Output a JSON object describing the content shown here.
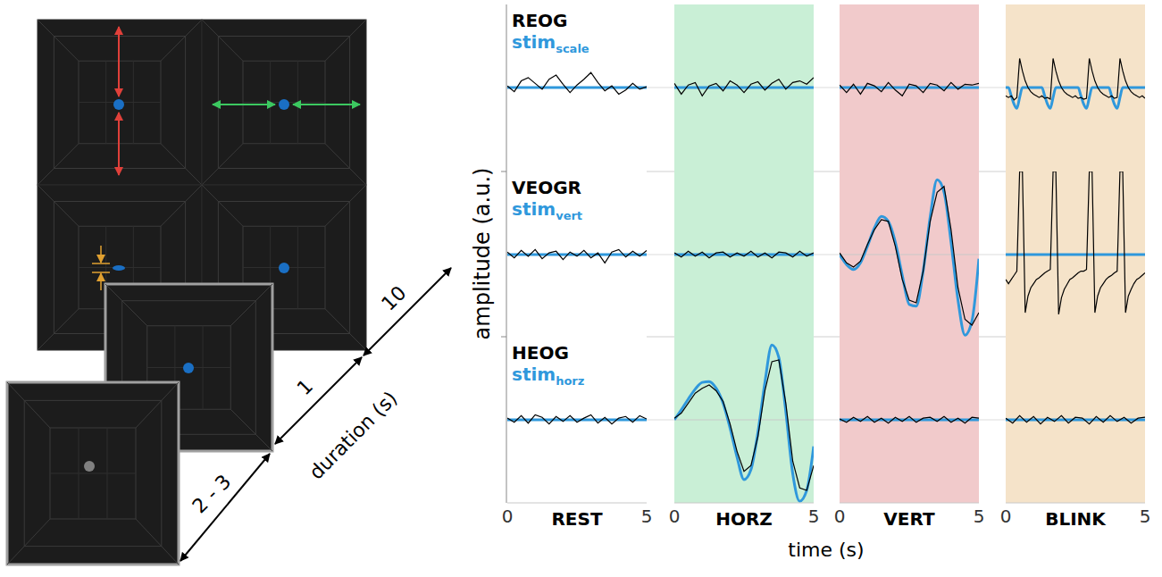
{
  "chart_data": {
    "type": "line",
    "x_label": "time (s)",
    "y_label": "amplitude (a.u.)",
    "xlim": [
      0,
      5
    ],
    "xticks": [
      0,
      5
    ],
    "ylim": [
      -1,
      1
    ],
    "yticks": [
      0
    ],
    "tick_labels": "x",
    "grid": true,
    "columns": [
      {
        "label": "REST",
        "color": "#ffffff"
      },
      {
        "label": "HORZ",
        "color": "#c9efd6"
      },
      {
        "label": "VERT",
        "color": "#f1cacb"
      },
      {
        "label": "BLINK",
        "color": "#f5e3c9"
      }
    ],
    "rows": [
      {
        "signal": {
          "name": "REOG",
          "color": "#000000"
        },
        "stim": {
          "name": "stim",
          "subscript": "scale",
          "color": "#2f98dc"
        }
      },
      {
        "signal": {
          "name": "VEOGR",
          "color": "#000000"
        },
        "stim": {
          "name": "stim",
          "subscript": "vert",
          "color": "#2f98dc"
        }
      },
      {
        "signal": {
          "name": "HEOG",
          "color": "#000000"
        },
        "stim": {
          "name": "stim",
          "subscript": "horz",
          "color": "#2f98dc"
        }
      }
    ],
    "panels": [
      [
        {
          "x": [
            0,
            0.25,
            0.5,
            0.75,
            1,
            1.25,
            1.5,
            1.75,
            2,
            2.25,
            2.5,
            2.75,
            3,
            3.25,
            3.5,
            3.75,
            4,
            4.25,
            4.5,
            4.75,
            5
          ],
          "signal": [
            0.02,
            -0.05,
            0.08,
            0.12,
            0.05,
            -0.02,
            0.1,
            0.15,
            0.04,
            -0.06,
            0.03,
            0.1,
            0.18,
            0.06,
            -0.04,
            0.02,
            -0.08,
            -0.03,
            0.05,
            -0.02,
            0.01
          ],
          "stim": [
            0,
            0,
            0,
            0,
            0,
            0,
            0,
            0,
            0,
            0,
            0,
            0,
            0,
            0,
            0,
            0,
            0,
            0,
            0,
            0,
            0
          ]
        },
        {
          "x": [
            0,
            0.25,
            0.5,
            0.75,
            1,
            1.25,
            1.5,
            1.75,
            2,
            2.25,
            2.5,
            2.75,
            3,
            3.25,
            3.5,
            3.75,
            4,
            4.25,
            4.5,
            4.75,
            5
          ],
          "signal": [
            0.05,
            -0.08,
            0.03,
            0.06,
            -0.1,
            0.02,
            0.05,
            -0.04,
            0.08,
            0.03,
            -0.06,
            0.04,
            0.07,
            -0.03,
            0.05,
            0.1,
            -0.02,
            0.06,
            0.08,
            0.04,
            0.12
          ],
          "stim": [
            0,
            0,
            0,
            0,
            0,
            0,
            0,
            0,
            0,
            0,
            0,
            0,
            0,
            0,
            0,
            0,
            0,
            0,
            0,
            0,
            0
          ]
        },
        {
          "x": [
            0,
            0.25,
            0.5,
            0.75,
            1,
            1.25,
            1.5,
            1.75,
            2,
            2.25,
            2.5,
            2.75,
            3,
            3.25,
            3.5,
            3.75,
            4,
            4.25,
            4.5,
            4.75,
            5
          ],
          "signal": [
            0.03,
            -0.06,
            0.04,
            -0.08,
            0.05,
            0.02,
            -0.05,
            0.06,
            -0.03,
            -0.1,
            0.04,
            0.02,
            -0.06,
            0.05,
            0.03,
            -0.04,
            0.06,
            -0.02,
            0.04,
            0.03,
            0.05
          ],
          "stim": [
            0,
            0,
            0,
            0,
            0,
            0,
            0,
            0,
            0,
            0,
            0,
            0,
            0,
            0,
            0,
            0,
            0,
            0,
            0,
            0,
            0
          ]
        },
        {
          "x": [
            0,
            0.1,
            0.2,
            0.3,
            0.4,
            0.5,
            0.6,
            0.7,
            0.8,
            0.9,
            1,
            1.1,
            1.2,
            1.3,
            1.4,
            1.5,
            1.6,
            1.7,
            1.8,
            1.9,
            2,
            2.1,
            2.2,
            2.3,
            2.4,
            2.5,
            2.6,
            2.7,
            2.8,
            2.9,
            3,
            3.1,
            3.2,
            3.3,
            3.4,
            3.5,
            3.6,
            3.7,
            3.8,
            3.9,
            4,
            4.1,
            4.2,
            4.3,
            4.4,
            4.5,
            4.6,
            4.7,
            4.8,
            4.9,
            5
          ],
          "signal": [
            -0.1,
            -0.12,
            -0.1,
            -0.15,
            -0.12,
            0.35,
            0.2,
            0.08,
            0,
            -0.05,
            -0.08,
            -0.1,
            -0.12,
            -0.1,
            -0.13,
            -0.12,
            -0.14,
            0.35,
            0.2,
            0.08,
            0,
            -0.05,
            -0.08,
            -0.1,
            -0.12,
            -0.1,
            -0.13,
            -0.12,
            -0.14,
            -0.13,
            0.35,
            0.2,
            0.08,
            0,
            -0.05,
            -0.08,
            -0.1,
            -0.12,
            -0.1,
            -0.13,
            -0.12,
            0.35,
            0.2,
            0.08,
            0,
            -0.05,
            -0.08,
            -0.1,
            -0.12,
            -0.1,
            -0.13
          ],
          "stim": [
            0,
            0,
            -0.1,
            -0.2,
            -0.25,
            -0.12,
            0,
            0,
            0,
            0,
            0,
            0,
            0,
            0,
            -0.1,
            -0.2,
            -0.25,
            -0.12,
            0,
            0,
            0,
            0,
            0,
            0,
            0,
            0,
            0,
            -0.1,
            -0.2,
            -0.25,
            -0.12,
            0,
            0,
            0,
            0,
            0,
            0,
            0,
            -0.1,
            -0.2,
            -0.25,
            -0.12,
            0,
            0,
            0,
            0,
            0,
            0,
            0,
            0,
            0
          ]
        }
      ],
      [
        {
          "x": [
            0,
            0.25,
            0.5,
            0.75,
            1,
            1.25,
            1.5,
            1.75,
            2,
            2.25,
            2.5,
            2.75,
            3,
            3.25,
            3.5,
            3.75,
            4,
            4.25,
            4.5,
            4.75,
            5
          ],
          "signal": [
            0.03,
            -0.04,
            0.05,
            -0.02,
            0.06,
            -0.05,
            0.02,
            0.04,
            -0.06,
            0.03,
            -0.02,
            0.05,
            -0.04,
            0.02,
            -0.1,
            0.03,
            0.06,
            -0.03,
            0.04,
            -0.02,
            0.05
          ],
          "stim": [
            0,
            0,
            0,
            0,
            0,
            0,
            0,
            0,
            0,
            0,
            0,
            0,
            0,
            0,
            0,
            0,
            0,
            0,
            0,
            0,
            0
          ]
        },
        {
          "x": [
            0,
            0.25,
            0.5,
            0.75,
            1,
            1.25,
            1.5,
            1.75,
            2,
            2.25,
            2.5,
            2.75,
            3,
            3.25,
            3.5,
            3.75,
            4,
            4.25,
            4.5,
            4.75,
            5
          ],
          "signal": [
            0.02,
            -0.03,
            0.04,
            -0.02,
            0.03,
            -0.04,
            0.02,
            0.03,
            -0.03,
            0.02,
            -0.02,
            0.04,
            -0.03,
            0.02,
            -0.04,
            0.03,
            0.02,
            -0.03,
            0.04,
            -0.02,
            0.02
          ],
          "stim": [
            0,
            0,
            0,
            0,
            0,
            0,
            0,
            0,
            0,
            0,
            0,
            0,
            0,
            0,
            0,
            0,
            0,
            0,
            0,
            0,
            0
          ]
        },
        {
          "x": [
            0,
            0.25,
            0.5,
            0.75,
            1,
            1.25,
            1.5,
            1.75,
            2,
            2.25,
            2.5,
            2.75,
            3,
            3.25,
            3.5,
            3.75,
            4,
            4.25,
            4.5,
            4.75,
            5
          ],
          "signal": [
            0.02,
            -0.1,
            -0.15,
            -0.08,
            0.12,
            0.3,
            0.42,
            0.4,
            0.1,
            -0.3,
            -0.55,
            -0.58,
            -0.2,
            0.4,
            0.75,
            0.82,
            0.3,
            -0.4,
            -0.78,
            -0.85,
            -0.7
          ],
          "stim": [
            0,
            -0.12,
            -0.18,
            -0.1,
            0.1,
            0.32,
            0.46,
            0.4,
            0.15,
            -0.25,
            -0.6,
            -0.62,
            -0.2,
            0.45,
            0.9,
            0.75,
            0.15,
            -0.55,
            -0.97,
            -0.8,
            -0.05
          ]
        },
        {
          "x": [
            0,
            0.1,
            0.2,
            0.3,
            0.4,
            0.5,
            0.6,
            0.7,
            0.8,
            0.9,
            1,
            1.1,
            1.2,
            1.3,
            1.4,
            1.5,
            1.6,
            1.7,
            1.8,
            1.9,
            2,
            2.1,
            2.2,
            2.3,
            2.4,
            2.5,
            2.6,
            2.7,
            2.8,
            2.9,
            3,
            3.1,
            3.2,
            3.3,
            3.4,
            3.5,
            3.6,
            3.7,
            3.8,
            3.9,
            4,
            4.1,
            4.2,
            4.3,
            4.4,
            4.5,
            4.6,
            4.7,
            4.8,
            4.9,
            5
          ],
          "signal": [
            -0.3,
            -0.35,
            -0.3,
            -0.25,
            -0.2,
            1,
            1,
            -0.7,
            -0.5,
            -0.4,
            -0.35,
            -0.3,
            -0.28,
            -0.25,
            -0.22,
            -0.2,
            -0.18,
            1,
            1,
            -0.72,
            -0.52,
            -0.42,
            -0.36,
            -0.3,
            -0.28,
            -0.25,
            -0.22,
            -0.2,
            -0.2,
            -0.18,
            1,
            1,
            -0.7,
            -0.5,
            -0.4,
            -0.35,
            -0.3,
            -0.27,
            -0.25,
            -0.22,
            -0.2,
            1,
            1,
            -0.7,
            -0.5,
            -0.42,
            -0.35,
            -0.3,
            -0.28,
            -0.25,
            -0.22
          ],
          "stim": [
            0,
            0,
            0,
            0,
            0,
            0,
            0,
            0,
            0,
            0,
            0,
            0,
            0,
            0,
            0,
            0,
            0,
            0,
            0,
            0,
            0,
            0,
            0,
            0,
            0,
            0,
            0,
            0,
            0,
            0,
            0,
            0,
            0,
            0,
            0,
            0,
            0,
            0,
            0,
            0,
            0,
            0,
            0,
            0,
            0,
            0,
            0,
            0,
            0,
            0,
            0
          ]
        }
      ],
      [
        {
          "x": [
            0,
            0.25,
            0.5,
            0.75,
            1,
            1.25,
            1.5,
            1.75,
            2,
            2.25,
            2.5,
            2.75,
            3,
            3.25,
            3.5,
            3.75,
            4,
            4.25,
            4.5,
            4.75,
            5
          ],
          "signal": [
            0.02,
            -0.03,
            0.05,
            -0.04,
            0.06,
            0.03,
            -0.05,
            0.04,
            -0.02,
            0.05,
            -0.03,
            0.02,
            0.06,
            -0.04,
            0.03,
            -0.05,
            0.02,
            0.04,
            -0.03,
            0.05,
            0.01
          ],
          "stim": [
            0,
            0,
            0,
            0,
            0,
            0,
            0,
            0,
            0,
            0,
            0,
            0,
            0,
            0,
            0,
            0,
            0,
            0,
            0,
            0,
            0
          ]
        },
        {
          "x": [
            0,
            0.25,
            0.5,
            0.75,
            1,
            1.25,
            1.5,
            1.75,
            2,
            2.25,
            2.5,
            2.75,
            3,
            3.25,
            3.5,
            3.75,
            4,
            4.25,
            4.5,
            4.75,
            5
          ],
          "signal": [
            0.02,
            0.08,
            0.2,
            0.32,
            0.38,
            0.42,
            0.35,
            0.22,
            -0.05,
            -0.38,
            -0.62,
            -0.55,
            -0.2,
            0.35,
            0.7,
            0.72,
            0.2,
            -0.5,
            -0.82,
            -0.85,
            -0.55
          ],
          "stim": [
            0,
            0.12,
            0.25,
            0.37,
            0.45,
            0.46,
            0.38,
            0.2,
            -0.1,
            -0.45,
            -0.72,
            -0.6,
            -0.15,
            0.45,
            0.9,
            0.75,
            0.1,
            -0.65,
            -0.98,
            -0.85,
            -0.32
          ]
        },
        {
          "x": [
            0,
            0.25,
            0.5,
            0.75,
            1,
            1.25,
            1.5,
            1.75,
            2,
            2.25,
            2.5,
            2.75,
            3,
            3.25,
            3.5,
            3.75,
            4,
            4.25,
            4.5,
            4.75,
            5
          ],
          "signal": [
            0.01,
            -0.03,
            0.03,
            -0.02,
            0.04,
            -0.03,
            0.02,
            -0.04,
            0.03,
            -0.02,
            0.04,
            -0.03,
            0.02,
            0.03,
            -0.02,
            0.04,
            -0.03,
            0.02,
            -0.04,
            0.03,
            0.02
          ],
          "stim": [
            0,
            0,
            0,
            0,
            0,
            0,
            0,
            0,
            0,
            0,
            0,
            0,
            0,
            0,
            0,
            0,
            0,
            0,
            0,
            0,
            0
          ]
        },
        {
          "x": [
            0,
            0.25,
            0.5,
            0.75,
            1,
            1.25,
            1.5,
            1.75,
            2,
            2.25,
            2.5,
            2.75,
            3,
            3.25,
            3.5,
            3.75,
            4,
            4.25,
            4.5,
            4.75,
            5
          ],
          "signal": [
            0.02,
            -0.04,
            0.05,
            -0.03,
            0.04,
            -0.05,
            0.03,
            -0.02,
            0.05,
            -0.04,
            0.03,
            0.02,
            -0.05,
            0.04,
            -0.03,
            0.05,
            -0.02,
            0.03,
            -0.04,
            0.02,
            0.03
          ],
          "stim": [
            0,
            0,
            0,
            0,
            0,
            0,
            0,
            0,
            0,
            0,
            0,
            0,
            0,
            0,
            0,
            0,
            0,
            0,
            0,
            0,
            0
          ]
        }
      ]
    ]
  },
  "diagram": {
    "durations": [
      "10",
      "1",
      "2 - 3"
    ],
    "duration_label": "duration (s)"
  }
}
